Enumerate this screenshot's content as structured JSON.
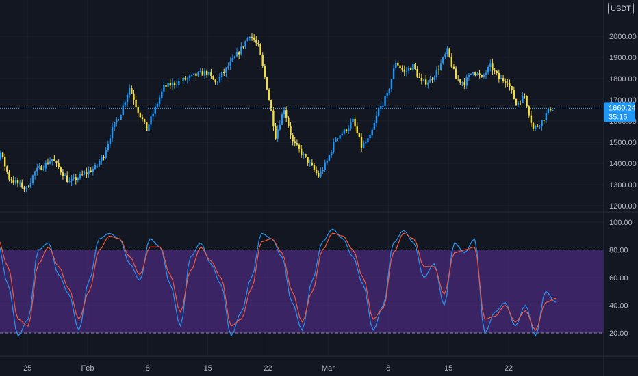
{
  "unit_badge": "USDT",
  "current": {
    "price": "1660.24",
    "countdown": "35:15",
    "value": 1660.24
  },
  "colors": {
    "background": "#131722",
    "grid": "#1e222d",
    "candle_up": "#2196f3",
    "candle_down": "#f5de3c",
    "stoch_k": "#2196f3",
    "stoch_d": "#f05a3a",
    "band_fill": "#4a2a7a",
    "price_line": "#2196f3"
  },
  "chart_data": [
    {
      "type": "candlestick",
      "title": "",
      "ylim": [
        1180,
        2050
      ],
      "y_ticks": [
        "1200.00",
        "1300.00",
        "1400.00",
        "1500.00",
        "1600.00",
        "1700.00",
        "1800.00",
        "1900.00",
        "2000.00"
      ],
      "x_ticks": [
        "25",
        "Feb",
        "8",
        "15",
        "22",
        "Mar",
        "8",
        "15",
        "22"
      ],
      "x_tick_days": [
        -7,
        0,
        7,
        14,
        21,
        28,
        35,
        42,
        49
      ],
      "x_range_days": [
        -14,
        58
      ],
      "path": [
        [
          -14,
          1200
        ],
        [
          -12,
          1290
        ],
        [
          -10,
          1450
        ],
        [
          -9,
          1330
        ],
        [
          -7,
          1280
        ],
        [
          -6,
          1360
        ],
        [
          -4,
          1420
        ],
        [
          -2,
          1310
        ],
        [
          1,
          1380
        ],
        [
          2,
          1440
        ],
        [
          3,
          1560
        ],
        [
          4,
          1640
        ],
        [
          5,
          1760
        ],
        [
          6,
          1650
        ],
        [
          7,
          1560
        ],
        [
          9,
          1760
        ],
        [
          11,
          1790
        ],
        [
          13,
          1820
        ],
        [
          14,
          1830
        ],
        [
          15,
          1780
        ],
        [
          16,
          1830
        ],
        [
          18,
          1940
        ],
        [
          19,
          2010
        ],
        [
          20,
          1950
        ],
        [
          21,
          1760
        ],
        [
          22,
          1530
        ],
        [
          23,
          1660
        ],
        [
          24,
          1500
        ],
        [
          25,
          1450
        ],
        [
          27,
          1340
        ],
        [
          28,
          1410
        ],
        [
          29,
          1520
        ],
        [
          30,
          1550
        ],
        [
          31,
          1600
        ],
        [
          32,
          1480
        ],
        [
          33,
          1520
        ],
        [
          34,
          1650
        ],
        [
          35,
          1720
        ],
        [
          36,
          1880
        ],
        [
          37,
          1830
        ],
        [
          38,
          1860
        ],
        [
          39,
          1780
        ],
        [
          40,
          1790
        ],
        [
          41,
          1850
        ],
        [
          42,
          1930
        ],
        [
          43,
          1800
        ],
        [
          44,
          1780
        ],
        [
          45,
          1840
        ],
        [
          46,
          1800
        ],
        [
          47,
          1860
        ],
        [
          48,
          1800
        ],
        [
          49,
          1790
        ],
        [
          50,
          1680
        ],
        [
          51,
          1720
        ],
        [
          52,
          1560
        ],
        [
          53,
          1600
        ],
        [
          54,
          1660
        ]
      ]
    },
    {
      "type": "line",
      "title": "",
      "ylim": [
        0,
        100
      ],
      "y_ticks": [
        "20.00",
        "40.00",
        "60.00",
        "80.00",
        "100.00"
      ],
      "bands": [
        20,
        80
      ],
      "series": [
        {
          "values": [
            22,
            65,
            95,
            85,
            55,
            18,
            30,
            80,
            85,
            62,
            48,
            22,
            58,
            88,
            92,
            88,
            70,
            58,
            88,
            82,
            55,
            25,
            75,
            85,
            70,
            55,
            18,
            35,
            60,
            92,
            88,
            75,
            42,
            22,
            58,
            86,
            95,
            88,
            75,
            55,
            22,
            40,
            85,
            94,
            85,
            60,
            70,
            40,
            85,
            78,
            88,
            20,
            35,
            42,
            25,
            40,
            18,
            50,
            42
          ]
        },
        {
          "values": [
            25,
            55,
            88,
            88,
            68,
            30,
            25,
            70,
            82,
            68,
            52,
            30,
            50,
            80,
            90,
            88,
            75,
            62,
            82,
            82,
            62,
            35,
            65,
            82,
            72,
            60,
            25,
            30,
            52,
            86,
            88,
            78,
            50,
            28,
            50,
            80,
            92,
            90,
            80,
            60,
            30,
            38,
            78,
            92,
            88,
            68,
            68,
            48,
            78,
            80,
            82,
            30,
            32,
            40,
            28,
            36,
            22,
            42,
            45
          ]
        }
      ]
    }
  ]
}
